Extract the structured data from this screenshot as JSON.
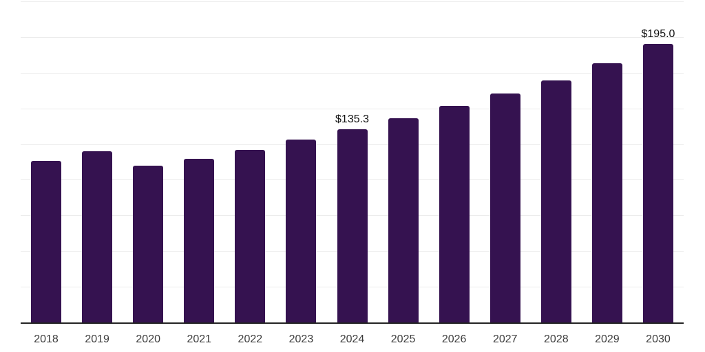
{
  "chart_data": {
    "type": "bar",
    "title": "",
    "xlabel": "",
    "ylabel": "",
    "categories": [
      "2018",
      "2019",
      "2020",
      "2021",
      "2022",
      "2023",
      "2024",
      "2025",
      "2026",
      "2027",
      "2028",
      "2029",
      "2030"
    ],
    "values": [
      113.0,
      119.8,
      110.0,
      114.8,
      121.0,
      128.4,
      135.3,
      142.9,
      151.6,
      160.6,
      169.7,
      181.8,
      195.0
    ],
    "data_labels": [
      "",
      "",
      "",
      "",
      "",
      "",
      "$135.3",
      "",
      "",
      "",
      "",
      "",
      "$195.0"
    ],
    "ylim": [
      0,
      225
    ],
    "grid_step": 25,
    "grid": "horizontal",
    "legend_position": "none",
    "colors": {
      "bar": "#351250",
      "data_label": "#111111",
      "tick_label": "#3c3c3c",
      "axis_line": "#222222",
      "gridline": "#ececec",
      "background": "#ffffff"
    }
  }
}
